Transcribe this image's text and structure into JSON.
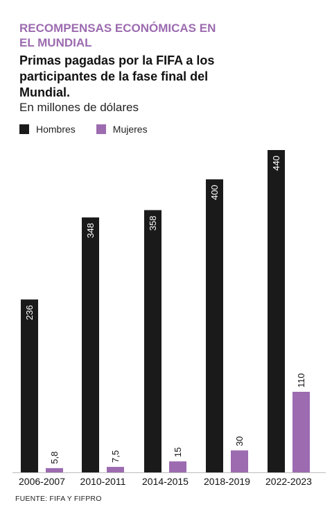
{
  "header": {
    "kicker": "RECOMPENSAS ECONÓMICAS EN EL MUNDIAL",
    "title": "Primas pagadas por la FIFA a los participantes de la fase final del Mundial.",
    "subtitle": "En millones de dólares"
  },
  "legend": [
    {
      "label": "Hombres",
      "color": "#1a1a1a"
    },
    {
      "label": "Mujeres",
      "color": "#9c6bb0"
    }
  ],
  "chart_data": {
    "type": "bar",
    "title": "Primas pagadas por la FIFA a los participantes de la fase final del Mundial.",
    "ylabel": "En millones de dólares",
    "categories": [
      "2006-2007",
      "2010-2011",
      "2014-2015",
      "2018-2019",
      "2022-2023"
    ],
    "series": [
      {
        "name": "Hombres",
        "color": "#1a1a1a",
        "values": [
          236,
          348,
          358,
          400,
          440
        ],
        "labels": [
          "236",
          "348",
          "358",
          "400",
          "440"
        ]
      },
      {
        "name": "Mujeres",
        "color": "#9c6bb0",
        "values": [
          5.8,
          7.5,
          15,
          30,
          110
        ],
        "labels": [
          "5,8",
          "7,5",
          "15",
          "30",
          "110"
        ]
      }
    ],
    "ylim": [
      0,
      440
    ],
    "grid": false,
    "legend_position": "top-left"
  },
  "source": "FUENTE: FIFA Y FIFPRO"
}
